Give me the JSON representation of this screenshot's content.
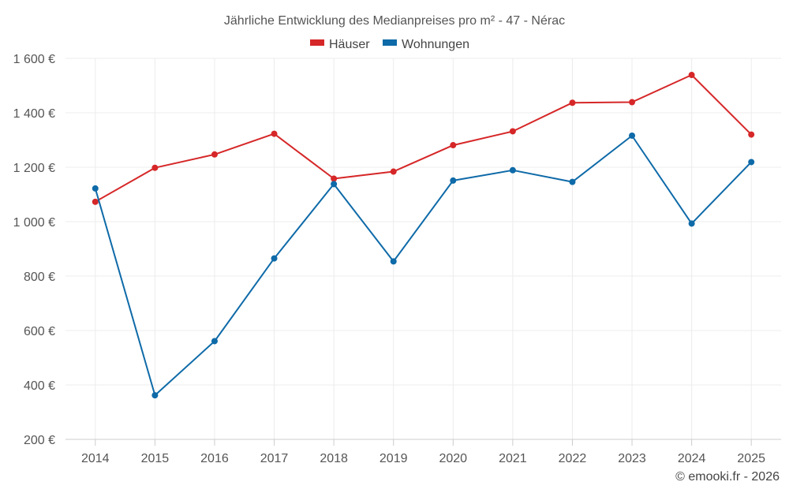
{
  "chart_data": {
    "type": "line",
    "title": "Jährliche Entwicklung des Medianpreises pro m² - 47 - Nérac",
    "categories": [
      "2014",
      "2015",
      "2016",
      "2017",
      "2018",
      "2019",
      "2020",
      "2021",
      "2022",
      "2023",
      "2024",
      "2025"
    ],
    "series": [
      {
        "name": "Häuser",
        "color": "#d62728",
        "values": [
          1073,
          1198,
          1247,
          1323,
          1158,
          1184,
          1281,
          1332,
          1437,
          1439,
          1539,
          1320
        ]
      },
      {
        "name": "Wohnungen",
        "color": "#0e6aa8",
        "values": [
          1122,
          362,
          561,
          865,
          1138,
          854,
          1151,
          1189,
          1146,
          1316,
          993,
          1219
        ]
      }
    ],
    "yticks": [
      200,
      400,
      600,
      800,
      1000,
      1200,
      1400,
      1600
    ],
    "ytick_labels": [
      "200 €",
      "400 €",
      "600 €",
      "800 €",
      "1 000 €",
      "1 200 €",
      "1 400 €",
      "1 600 €"
    ],
    "ylim": [
      200,
      1600
    ],
    "xlabel": "",
    "ylabel": "",
    "grid": true,
    "legend_position": "top-center"
  },
  "footer": {
    "credit": "© emooki.fr - 2026"
  }
}
